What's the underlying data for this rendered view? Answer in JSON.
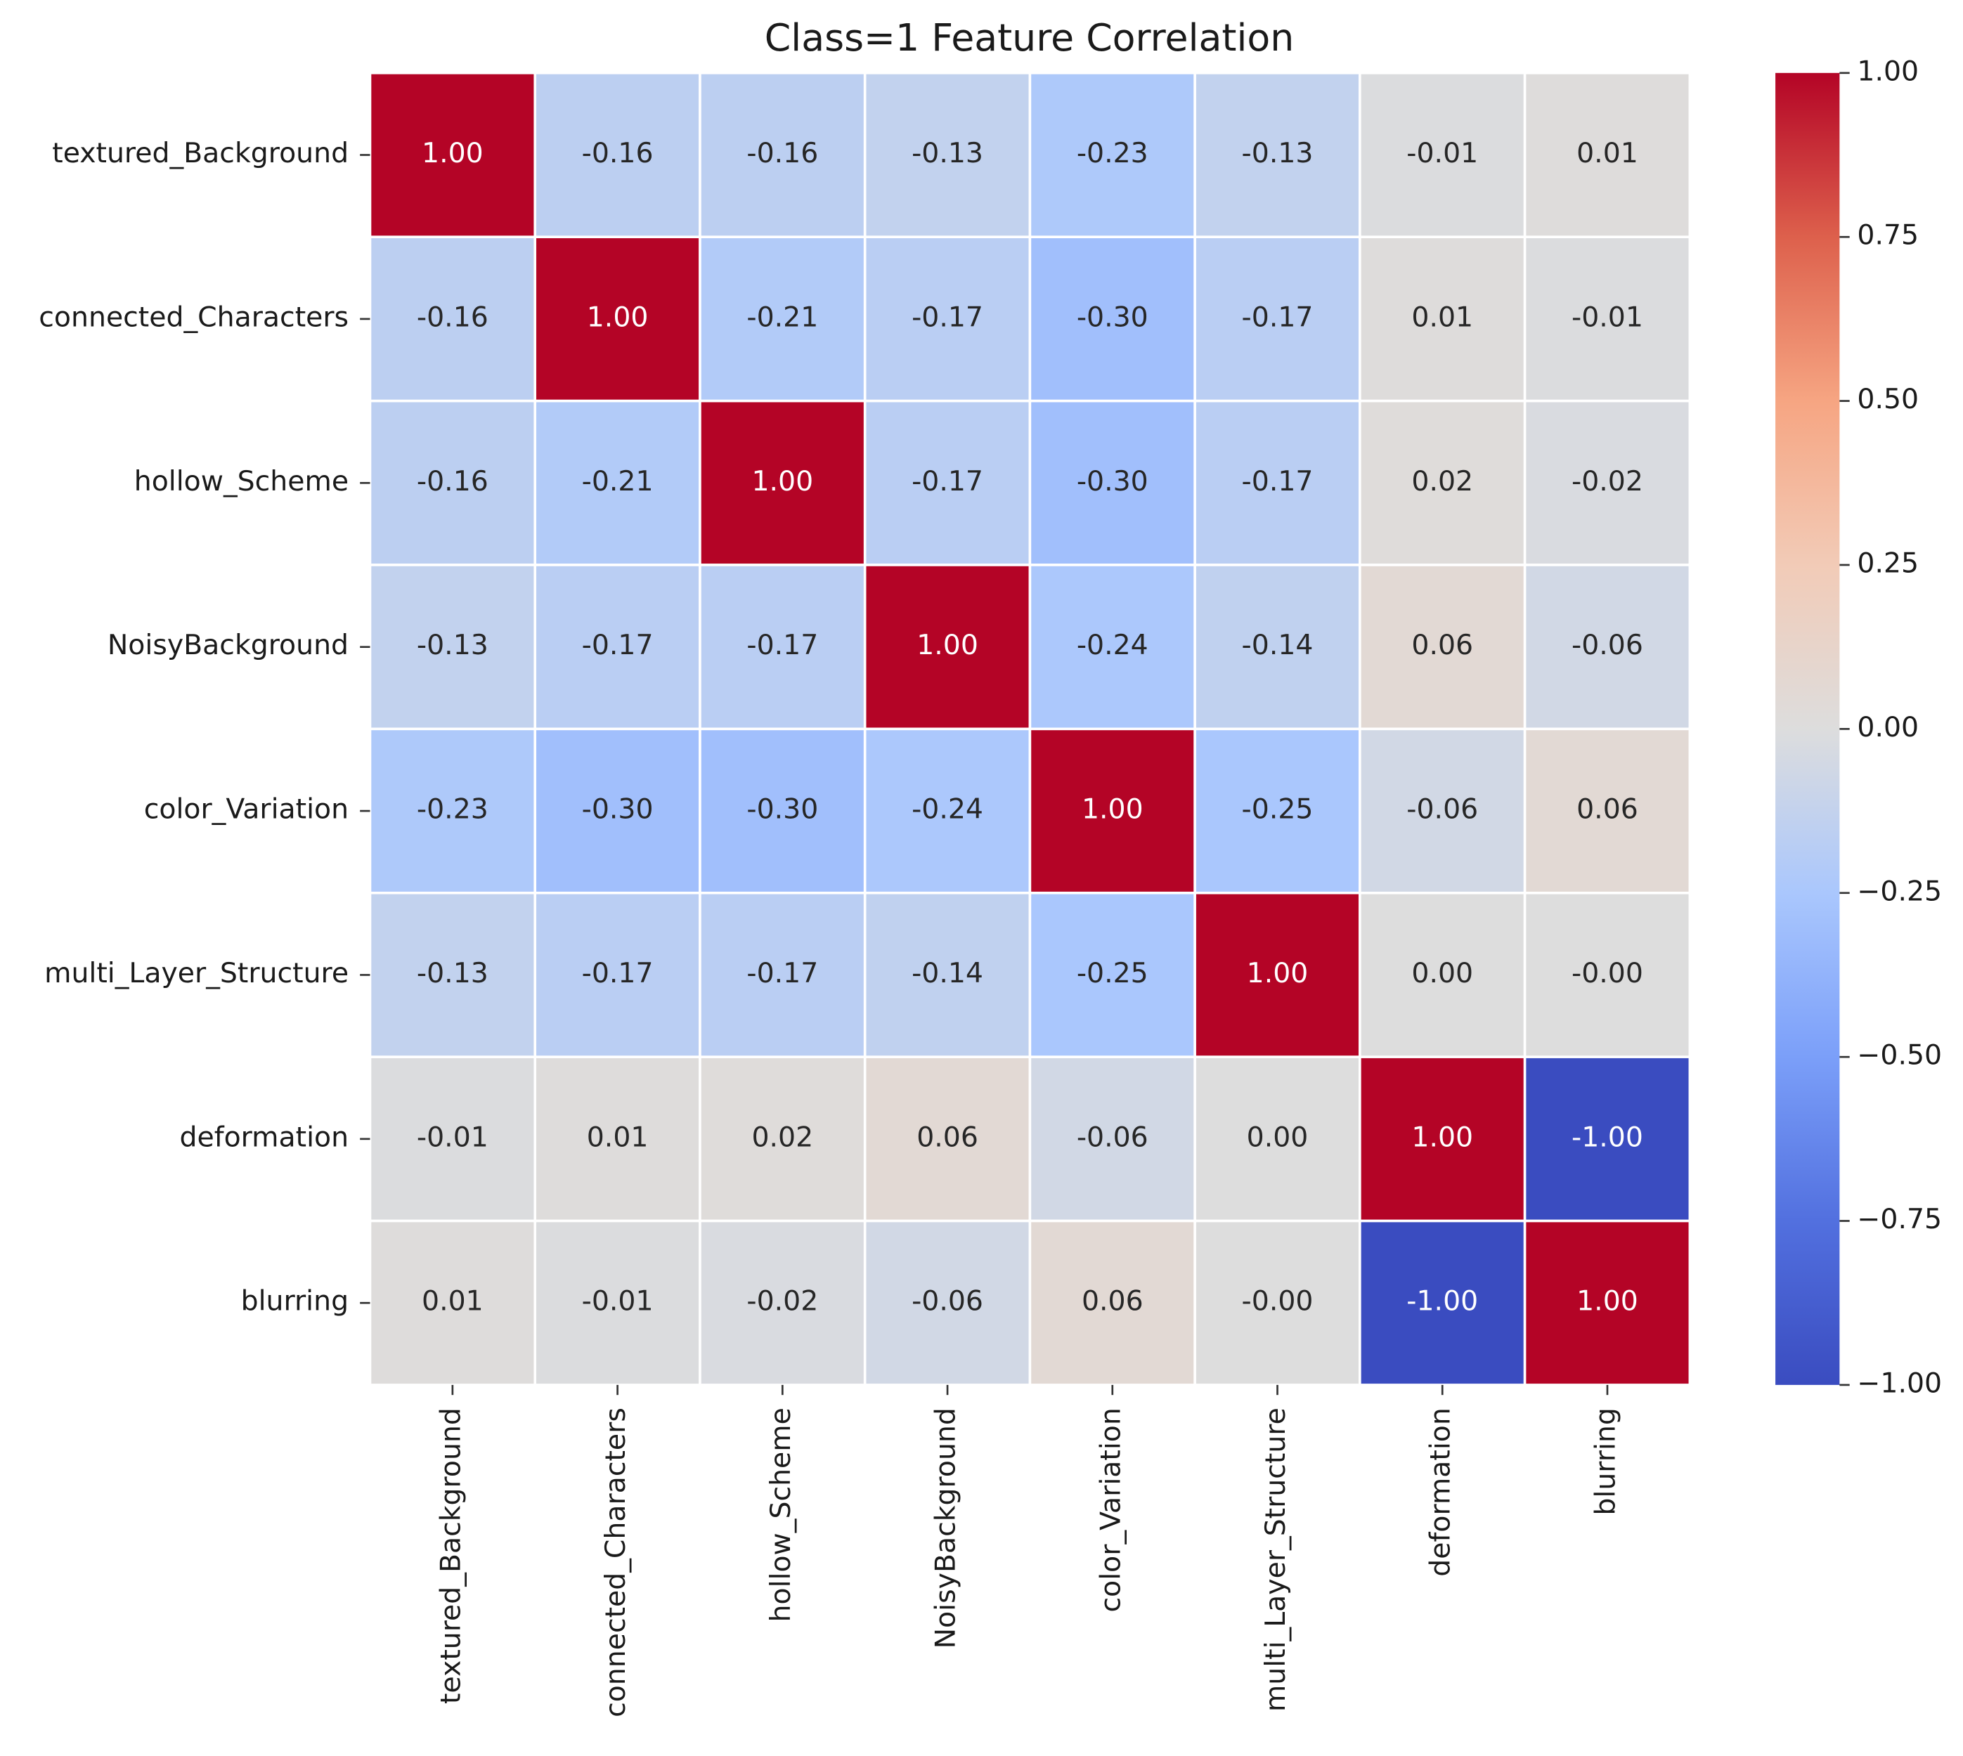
{
  "chart_data": {
    "type": "heatmap",
    "title": "Class=1 Feature Correlation",
    "categories": [
      "textured_Background",
      "connected_Characters",
      "hollow_Scheme",
      "NoisyBackground",
      "color_Variation",
      "multi_Layer_Structure",
      "deformation",
      "blurring"
    ],
    "values": [
      [
        1.0,
        -0.16,
        -0.16,
        -0.13,
        -0.23,
        -0.13,
        -0.01,
        0.01
      ],
      [
        -0.16,
        1.0,
        -0.21,
        -0.17,
        -0.3,
        -0.17,
        0.01,
        -0.01
      ],
      [
        -0.16,
        -0.21,
        1.0,
        -0.17,
        -0.3,
        -0.17,
        0.02,
        -0.02
      ],
      [
        -0.13,
        -0.17,
        -0.17,
        1.0,
        -0.24,
        -0.14,
        0.06,
        -0.06
      ],
      [
        -0.23,
        -0.3,
        -0.3,
        -0.24,
        1.0,
        -0.25,
        -0.06,
        0.06
      ],
      [
        -0.13,
        -0.17,
        -0.17,
        -0.14,
        -0.25,
        1.0,
        0.0,
        0.0
      ],
      [
        -0.01,
        0.01,
        0.02,
        0.06,
        -0.06,
        0.0,
        1.0,
        -1.0
      ],
      [
        0.01,
        -0.01,
        -0.02,
        -0.06,
        0.06,
        0.0,
        -1.0,
        1.0
      ]
    ],
    "value_labels": [
      [
        "1.00",
        "-0.16",
        "-0.16",
        "-0.13",
        "-0.23",
        "-0.13",
        "-0.01",
        "0.01"
      ],
      [
        "-0.16",
        "1.00",
        "-0.21",
        "-0.17",
        "-0.30",
        "-0.17",
        "0.01",
        "-0.01"
      ],
      [
        "-0.16",
        "-0.21",
        "1.00",
        "-0.17",
        "-0.30",
        "-0.17",
        "0.02",
        "-0.02"
      ],
      [
        "-0.13",
        "-0.17",
        "-0.17",
        "1.00",
        "-0.24",
        "-0.14",
        "0.06",
        "-0.06"
      ],
      [
        "-0.23",
        "-0.30",
        "-0.30",
        "-0.24",
        "1.00",
        "-0.25",
        "-0.06",
        "0.06"
      ],
      [
        "-0.13",
        "-0.17",
        "-0.17",
        "-0.14",
        "-0.25",
        "1.00",
        "0.00",
        "-0.00"
      ],
      [
        "-0.01",
        "0.01",
        "0.02",
        "0.06",
        "-0.06",
        "0.00",
        "1.00",
        "-1.00"
      ],
      [
        "0.01",
        "-0.01",
        "-0.02",
        "-0.06",
        "0.06",
        "-0.00",
        "-1.00",
        "1.00"
      ]
    ],
    "colormap": "coolwarm",
    "clim": [
      -1,
      1
    ],
    "cticks": [
      {
        "value": 1,
        "label": "1.00"
      },
      {
        "value": 0.75,
        "label": "0.75"
      },
      {
        "value": 0.5,
        "label": "0.50"
      },
      {
        "value": 0.25,
        "label": "0.25"
      },
      {
        "value": 0,
        "label": "0.00"
      },
      {
        "value": -0.25,
        "label": "−0.25"
      },
      {
        "value": -0.5,
        "label": "−0.50"
      },
      {
        "value": -0.75,
        "label": "−0.75"
      },
      {
        "value": -1,
        "label": "−1.00"
      }
    ]
  }
}
